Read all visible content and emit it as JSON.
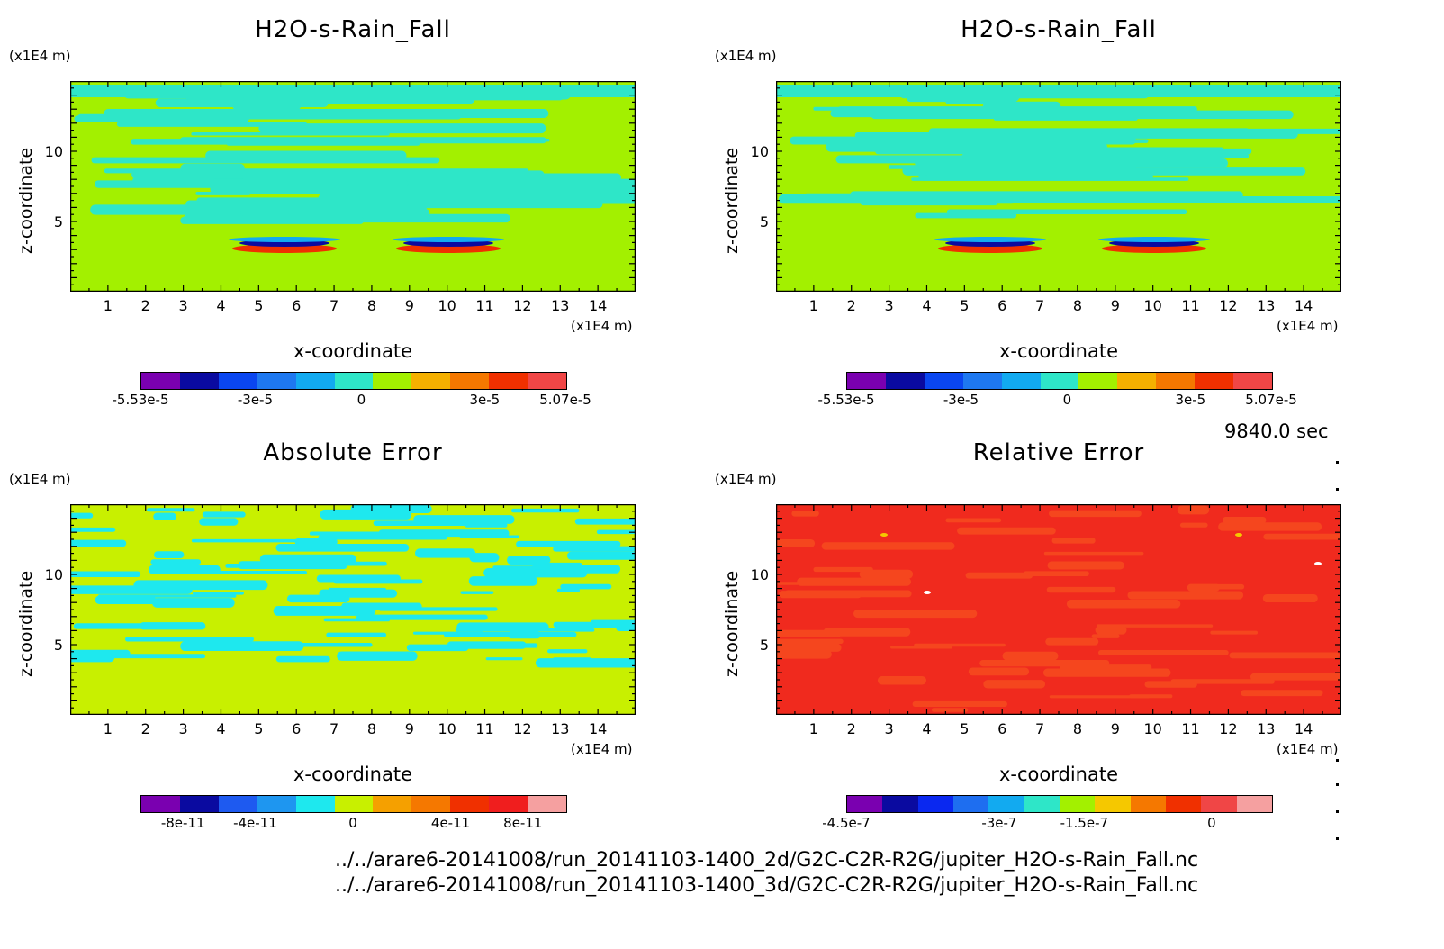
{
  "panels": [
    {
      "title": "H2O-s-Rain_Fall",
      "type": "field",
      "bg": "#a3f000",
      "band": "#2ee6c8",
      "colorbar": [
        "#7a00b0",
        "#0a0aa0",
        "#0a46f0",
        "#1e78f0",
        "#12aaf0",
        "#2ee6c8",
        "#a3f000",
        "#f5b000",
        "#f57800",
        "#f03000",
        "#f04646"
      ],
      "cbar_labels": [
        "-5.53e-5",
        "-3e-5",
        "0",
        "3e-5",
        "5.07e-5"
      ]
    },
    {
      "title": "H2O-s-Rain_Fall",
      "type": "field",
      "bg": "#a3f000",
      "band": "#2ee6c8",
      "colorbar": [
        "#7a00b0",
        "#0a0aa0",
        "#0a46f0",
        "#1e78f0",
        "#12aaf0",
        "#2ee6c8",
        "#a3f000",
        "#f5b000",
        "#f57800",
        "#f03000",
        "#f04646"
      ],
      "cbar_labels": [
        "-5.53e-5",
        "-3e-5",
        "0",
        "3e-5",
        "5.07e-5"
      ]
    },
    {
      "title": "Absolute Error",
      "type": "abs",
      "bg": "#c8f000",
      "band": "#1ee8ee",
      "colorbar": [
        "#7a00b0",
        "#0a0aa0",
        "#1e5af0",
        "#1e96f0",
        "#1ee8ee",
        "#c8f000",
        "#f5a000",
        "#f57800",
        "#f03000",
        "#f01e1e",
        "#f5a0a0"
      ],
      "cbar_labels": [
        "-8e-11",
        "-4e-11",
        "0",
        "4e-11",
        "8e-11"
      ]
    },
    {
      "title": "Relative Error",
      "type": "rel",
      "bg": "#f02a1e",
      "band": "#f5461e",
      "colorbar": [
        "#7a00b0",
        "#0a0aa0",
        "#0a28f0",
        "#1e6ef0",
        "#12aaf0",
        "#2ee6c8",
        "#a3f000",
        "#f5c800",
        "#f57800",
        "#f03000",
        "#f04646",
        "#f5a0a0"
      ],
      "cbar_labels": [
        "-4.5e-7",
        "-3e-7",
        "-1.5e-7",
        "0"
      ]
    }
  ],
  "axes": {
    "y_unit": "(x1E4 m)",
    "y_label": "z-coordinate",
    "x_unit": "(x1E4 m)",
    "x_label": "x-coordinate",
    "x_ticks": [
      "1",
      "2",
      "3",
      "4",
      "5",
      "6",
      "7",
      "8",
      "9",
      "10",
      "11",
      "12",
      "13",
      "14"
    ],
    "y_ticks": [
      "10",
      "5"
    ]
  },
  "time_label": "9840.0 sec",
  "paths": [
    "../../arare6-20141008/run_20141103-1400_2d/G2C-C2R-R2G/jupiter_H2O-s-Rain_Fall.nc",
    "../../arare6-20141008/run_20141103-1400_3d/G2C-C2R-R2G/jupiter_H2O-s-Rain_Fall.nc"
  ],
  "chart_data": [
    {
      "type": "heatmap",
      "title": "H2O-s-Rain_Fall",
      "xlabel": "x-coordinate",
      "ylabel": "z-coordinate",
      "x_unit": "(x1E4 m)",
      "y_unit": "(x1E4 m)",
      "xlim": [
        0,
        15
      ],
      "ylim": [
        0,
        15
      ],
      "colorbar_range": [
        -5.53e-05,
        5.07e-05
      ],
      "colorbar_ticks": [
        "-5.53e-5",
        "-3e-5",
        "0",
        "3e-5",
        "5.07e-5"
      ]
    },
    {
      "type": "heatmap",
      "title": "H2O-s-Rain_Fall",
      "xlabel": "x-coordinate",
      "ylabel": "z-coordinate",
      "x_unit": "(x1E4 m)",
      "y_unit": "(x1E4 m)",
      "xlim": [
        0,
        15
      ],
      "ylim": [
        0,
        15
      ],
      "colorbar_range": [
        -5.53e-05,
        5.07e-05
      ],
      "colorbar_ticks": [
        "-5.53e-5",
        "-3e-5",
        "0",
        "3e-5",
        "5.07e-5"
      ]
    },
    {
      "type": "heatmap",
      "title": "Absolute Error",
      "xlabel": "x-coordinate",
      "ylabel": "z-coordinate",
      "x_unit": "(x1E4 m)",
      "y_unit": "(x1E4 m)",
      "xlim": [
        0,
        15
      ],
      "ylim": [
        0,
        15
      ],
      "colorbar_ticks": [
        "-8e-11",
        "-4e-11",
        "0",
        "4e-11",
        "8e-11"
      ]
    },
    {
      "type": "heatmap",
      "title": "Relative Error",
      "xlabel": "x-coordinate",
      "ylabel": "z-coordinate",
      "x_unit": "(x1E4 m)",
      "y_unit": "(x1E4 m)",
      "xlim": [
        0,
        15
      ],
      "ylim": [
        0,
        15
      ],
      "colorbar_ticks": [
        "-4.5e-7",
        "-3e-7",
        "-1.5e-7",
        "0"
      ]
    }
  ]
}
